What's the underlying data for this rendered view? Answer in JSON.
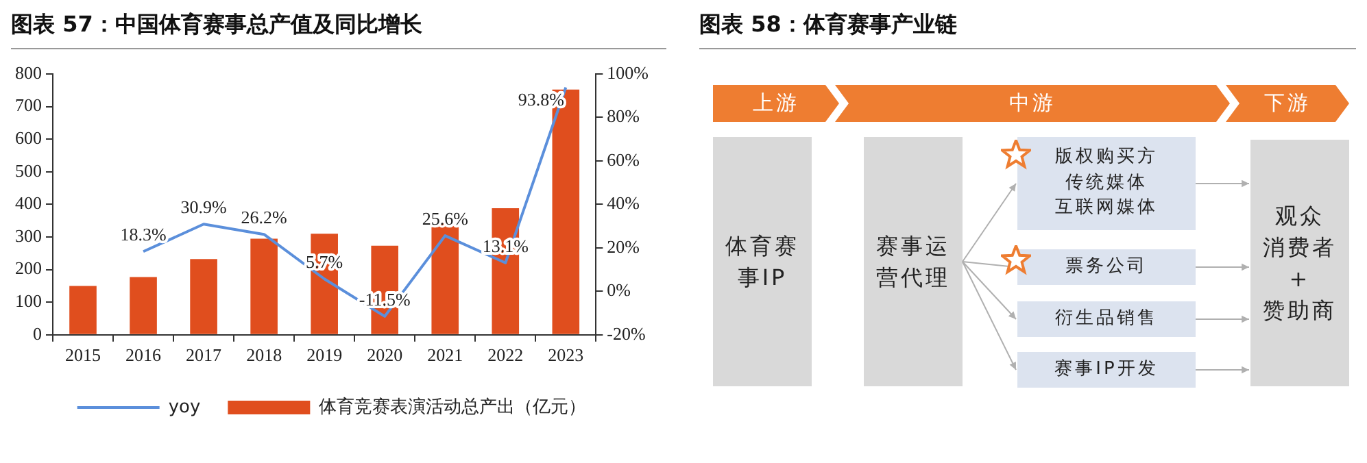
{
  "chart_data": [
    {
      "type": "bar",
      "title": "图表 57：中国体育赛事总产值及同比增长",
      "categories": [
        "2015",
        "2016",
        "2017",
        "2018",
        "2019",
        "2020",
        "2021",
        "2022",
        "2023"
      ],
      "series": [
        {
          "name": "体育竞赛表演活动总产出（亿元）",
          "type": "bar",
          "color": "#e04e1e",
          "values": [
            150,
            177,
            232,
            295,
            310,
            273,
            343,
            388,
            752
          ]
        },
        {
          "name": "yoy",
          "type": "line",
          "axis": "y2",
          "color": "#5b8fdb",
          "values": [
            null,
            18.3,
            30.9,
            26.2,
            5.7,
            -11.5,
            25.6,
            13.1,
            93.8
          ],
          "value_labels": [
            null,
            "18.3%",
            "30.9%",
            "26.2%",
            "5.7%",
            "-11.5%",
            "25.6%",
            "13.1%",
            "93.8%"
          ]
        }
      ],
      "ylim": [
        0,
        800
      ],
      "yticks": [
        0,
        100,
        200,
        300,
        400,
        500,
        600,
        700,
        800
      ],
      "y2lim": [
        -20,
        100
      ],
      "y2ticks": [
        {
          "value": -20,
          "label": "-20%"
        },
        {
          "value": 0,
          "label": "0%"
        },
        {
          "value": 20,
          "label": "20%"
        },
        {
          "value": 40,
          "label": "40%"
        },
        {
          "value": 60,
          "label": "60%"
        },
        {
          "value": 80,
          "label": "80%"
        },
        {
          "value": 100,
          "label": "100%"
        }
      ],
      "grid": false,
      "legend": "bottom",
      "marker": "none",
      "line_style": "solid"
    },
    {
      "type": "other",
      "title": "图表 58：体育赛事产业链",
      "annotations": [
        "上游",
        "中游",
        "下游",
        "体育赛事IP",
        "赛事运营代理",
        "版权购买方",
        "传统媒体",
        "互联网媒体",
        "票务公司",
        "衍生品销售",
        "赛事IP开发",
        "观众",
        "消费者",
        "+",
        "赞助商"
      ]
    }
  ]
}
